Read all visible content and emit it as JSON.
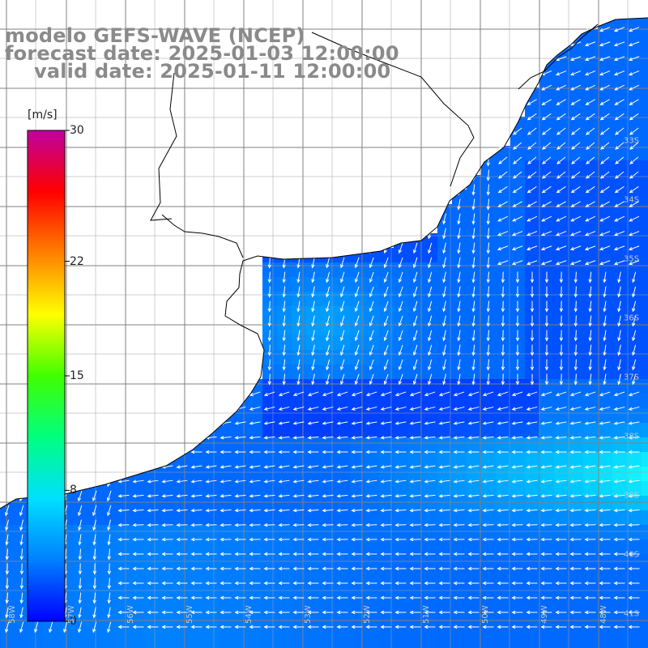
{
  "header": {
    "model": "modelo GEFS-WAVE (NCEP)",
    "forecast": "forecast date: 2025-01-03 12:00:00",
    "valid": "valid date: 2025-01-11 12:00:00"
  },
  "colorbar": {
    "unit": "[m/s]",
    "ticks": [
      {
        "label": "30",
        "value": 30
      },
      {
        "label": "22",
        "value": 22
      },
      {
        "label": "15",
        "value": 15
      },
      {
        "label": "8",
        "value": 8
      },
      {
        "label": "0",
        "value": 0
      }
    ],
    "colors": [
      "#0000ff",
      "#0080ff",
      "#00e0ff",
      "#00ff80",
      "#40ff00",
      "#ffff00",
      "#ff8000",
      "#ff0000",
      "#c000a0"
    ]
  },
  "map": {
    "land_color": "#ffffff",
    "coast_color": "#000000",
    "grid_color": "#808080",
    "lat_labels": [
      {
        "label": "33S",
        "value": -33
      },
      {
        "label": "34S",
        "value": -34
      },
      {
        "label": "35S",
        "value": -35
      },
      {
        "label": "36S",
        "value": -36
      },
      {
        "label": "37S",
        "value": -37
      },
      {
        "label": "38S",
        "value": -38
      },
      {
        "label": "39S",
        "value": -39
      },
      {
        "label": "40S",
        "value": -40
      },
      {
        "label": "41S",
        "value": -41
      }
    ],
    "lon_labels": [
      {
        "label": "58W",
        "value": -58
      },
      {
        "label": "57W",
        "value": -57
      },
      {
        "label": "56W",
        "value": -56
      },
      {
        "label": "55W",
        "value": -55
      },
      {
        "label": "54W",
        "value": -54
      },
      {
        "label": "53W",
        "value": -53
      },
      {
        "label": "52W",
        "value": -52
      },
      {
        "label": "51W",
        "value": -51
      },
      {
        "label": "50W",
        "value": -50
      },
      {
        "label": "49W",
        "value": -49
      },
      {
        "label": "48W",
        "value": -48
      }
    ]
  }
}
